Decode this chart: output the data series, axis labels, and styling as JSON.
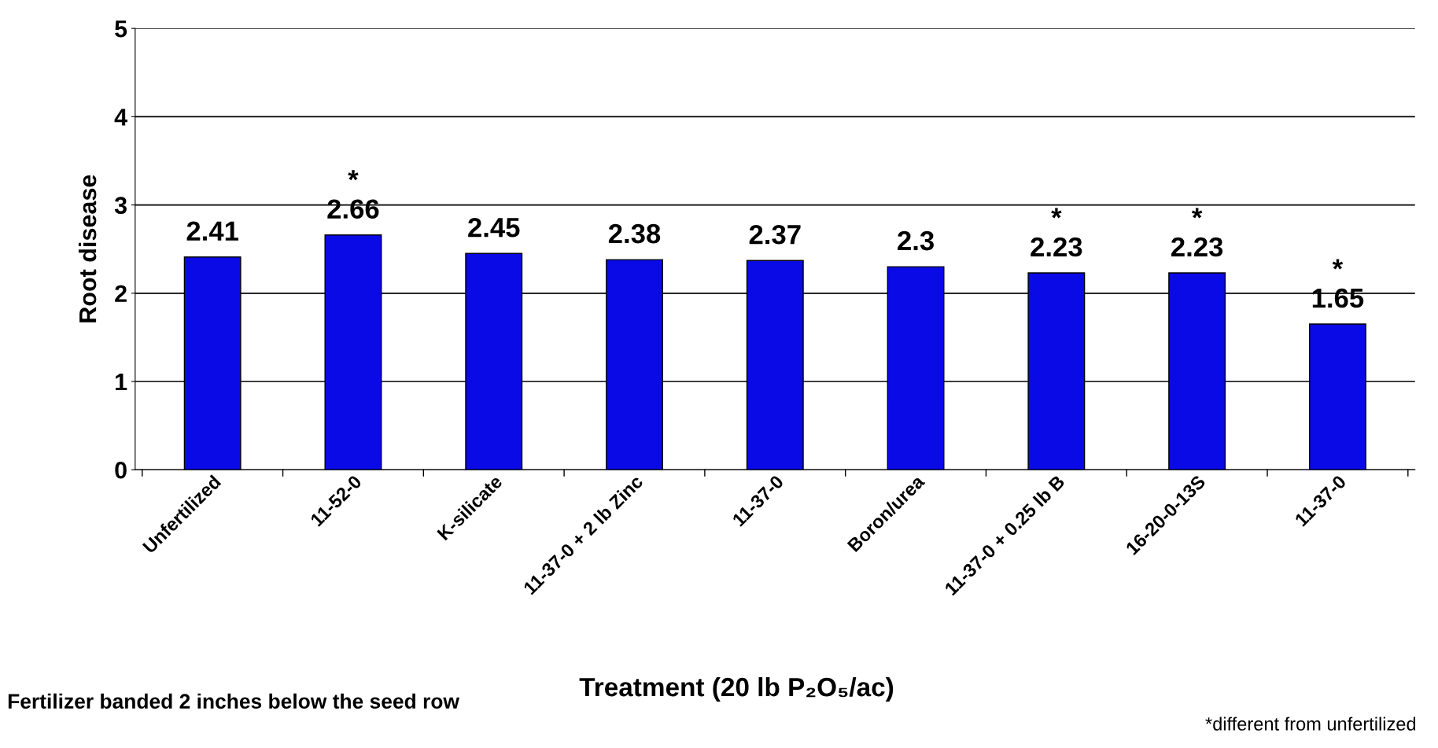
{
  "chart_data": {
    "type": "bar",
    "xlabel": "Treatment (20 lb P₂O₅/ac)",
    "ylabel": "Root disease",
    "categories": [
      "Unfertilized",
      "11-52-0",
      "K-silicate",
      "11-37-0 + 2 lb Zinc",
      "11-37-0",
      "Boron/urea",
      "11-37-0 + 0.25 lb B",
      "16-20-0-13S",
      "11-37-0"
    ],
    "values": [
      2.41,
      2.66,
      2.45,
      2.38,
      2.37,
      2.3,
      2.23,
      2.23,
      1.65
    ],
    "color": "#0a0ae6",
    "ylim": [
      0,
      5
    ],
    "yticks": [
      0,
      1,
      2,
      3,
      4,
      5
    ],
    "grid": "y",
    "data_labels": true,
    "annotations": [
      {
        "text": "*",
        "x": "11-52-0",
        "y": 2.66
      },
      {
        "text": "*",
        "x": "11-37-0 + 0.25 lb B",
        "y": 2.23
      },
      {
        "text": "*",
        "x": "16-20-0-13S",
        "y": 2.23
      },
      {
        "text": "*",
        "y": 1.65
      },
      "Fertilizer banded 2 inches below the seed row",
      "*different from unfertilized"
    ]
  }
}
